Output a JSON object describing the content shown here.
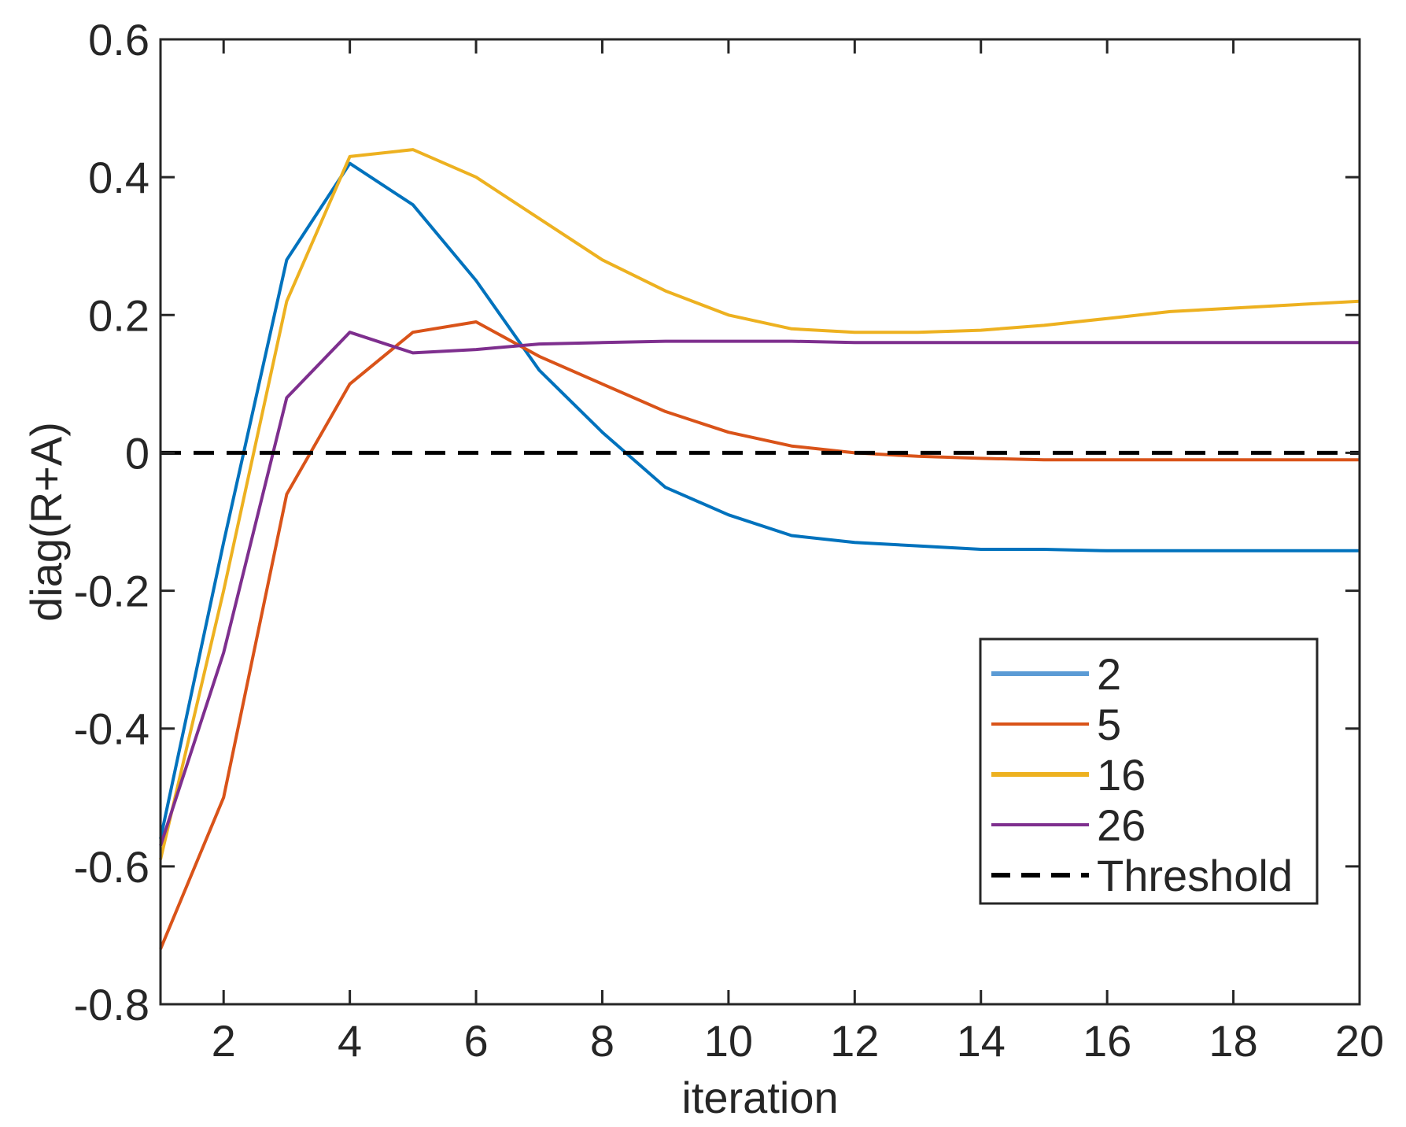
{
  "chart_data": {
    "type": "line",
    "title": "",
    "xlabel": "iteration",
    "ylabel": "diag(R+A)",
    "xlim": [
      1,
      20
    ],
    "ylim": [
      -0.8,
      0.6
    ],
    "xticks": [
      2,
      4,
      6,
      8,
      10,
      12,
      14,
      16,
      18,
      20
    ],
    "xtick_labels": [
      "2",
      "4",
      "6",
      "8",
      "10",
      "12",
      "14",
      "16",
      "18",
      "20"
    ],
    "yticks": [
      -0.8,
      -0.6,
      -0.4,
      -0.2,
      0,
      0.2,
      0.4,
      0.6
    ],
    "ytick_labels": [
      "-0.8",
      "-0.6",
      "-0.4",
      "-0.2",
      "0",
      "0.2",
      "0.4",
      "0.6"
    ],
    "grid": false,
    "legend_position": "bottom-right",
    "x": [
      1,
      2,
      3,
      4,
      5,
      6,
      7,
      8,
      9,
      10,
      11,
      12,
      13,
      14,
      15,
      16,
      17,
      18,
      19,
      20
    ],
    "series": [
      {
        "name": "2",
        "color": "#0072BD",
        "legend_color": "#5B9BD5",
        "values": [
          -0.56,
          -0.13,
          0.28,
          0.42,
          0.36,
          0.25,
          0.12,
          0.03,
          -0.05,
          -0.09,
          -0.12,
          -0.13,
          -0.135,
          -0.14,
          -0.14,
          -0.142,
          -0.142,
          -0.142,
          -0.142,
          -0.142
        ]
      },
      {
        "name": "5",
        "color": "#D95319",
        "legend_color": "#D95319",
        "values": [
          -0.72,
          -0.5,
          -0.06,
          0.1,
          0.175,
          0.19,
          0.14,
          0.1,
          0.06,
          0.03,
          0.01,
          0.0,
          -0.005,
          -0.008,
          -0.01,
          -0.01,
          -0.01,
          -0.01,
          -0.01,
          -0.01
        ]
      },
      {
        "name": "16",
        "color": "#EDB120",
        "legend_color": "#EDB120",
        "values": [
          -0.59,
          -0.2,
          0.22,
          0.43,
          0.44,
          0.4,
          0.34,
          0.28,
          0.235,
          0.2,
          0.18,
          0.175,
          0.175,
          0.178,
          0.185,
          0.195,
          0.205,
          0.21,
          0.215,
          0.22
        ]
      },
      {
        "name": "26",
        "color": "#7E2F8E",
        "legend_color": "#7E2F8E",
        "values": [
          -0.57,
          -0.29,
          0.08,
          0.175,
          0.145,
          0.15,
          0.158,
          0.16,
          0.162,
          0.162,
          0.162,
          0.16,
          0.16,
          0.16,
          0.16,
          0.16,
          0.16,
          0.16,
          0.16,
          0.16
        ]
      },
      {
        "name": "Threshold",
        "color": "#000000",
        "legend_color": "#000000",
        "dashed": true,
        "values": [
          0,
          0,
          0,
          0,
          0,
          0,
          0,
          0,
          0,
          0,
          0,
          0,
          0,
          0,
          0,
          0,
          0,
          0,
          0,
          0
        ]
      }
    ]
  }
}
